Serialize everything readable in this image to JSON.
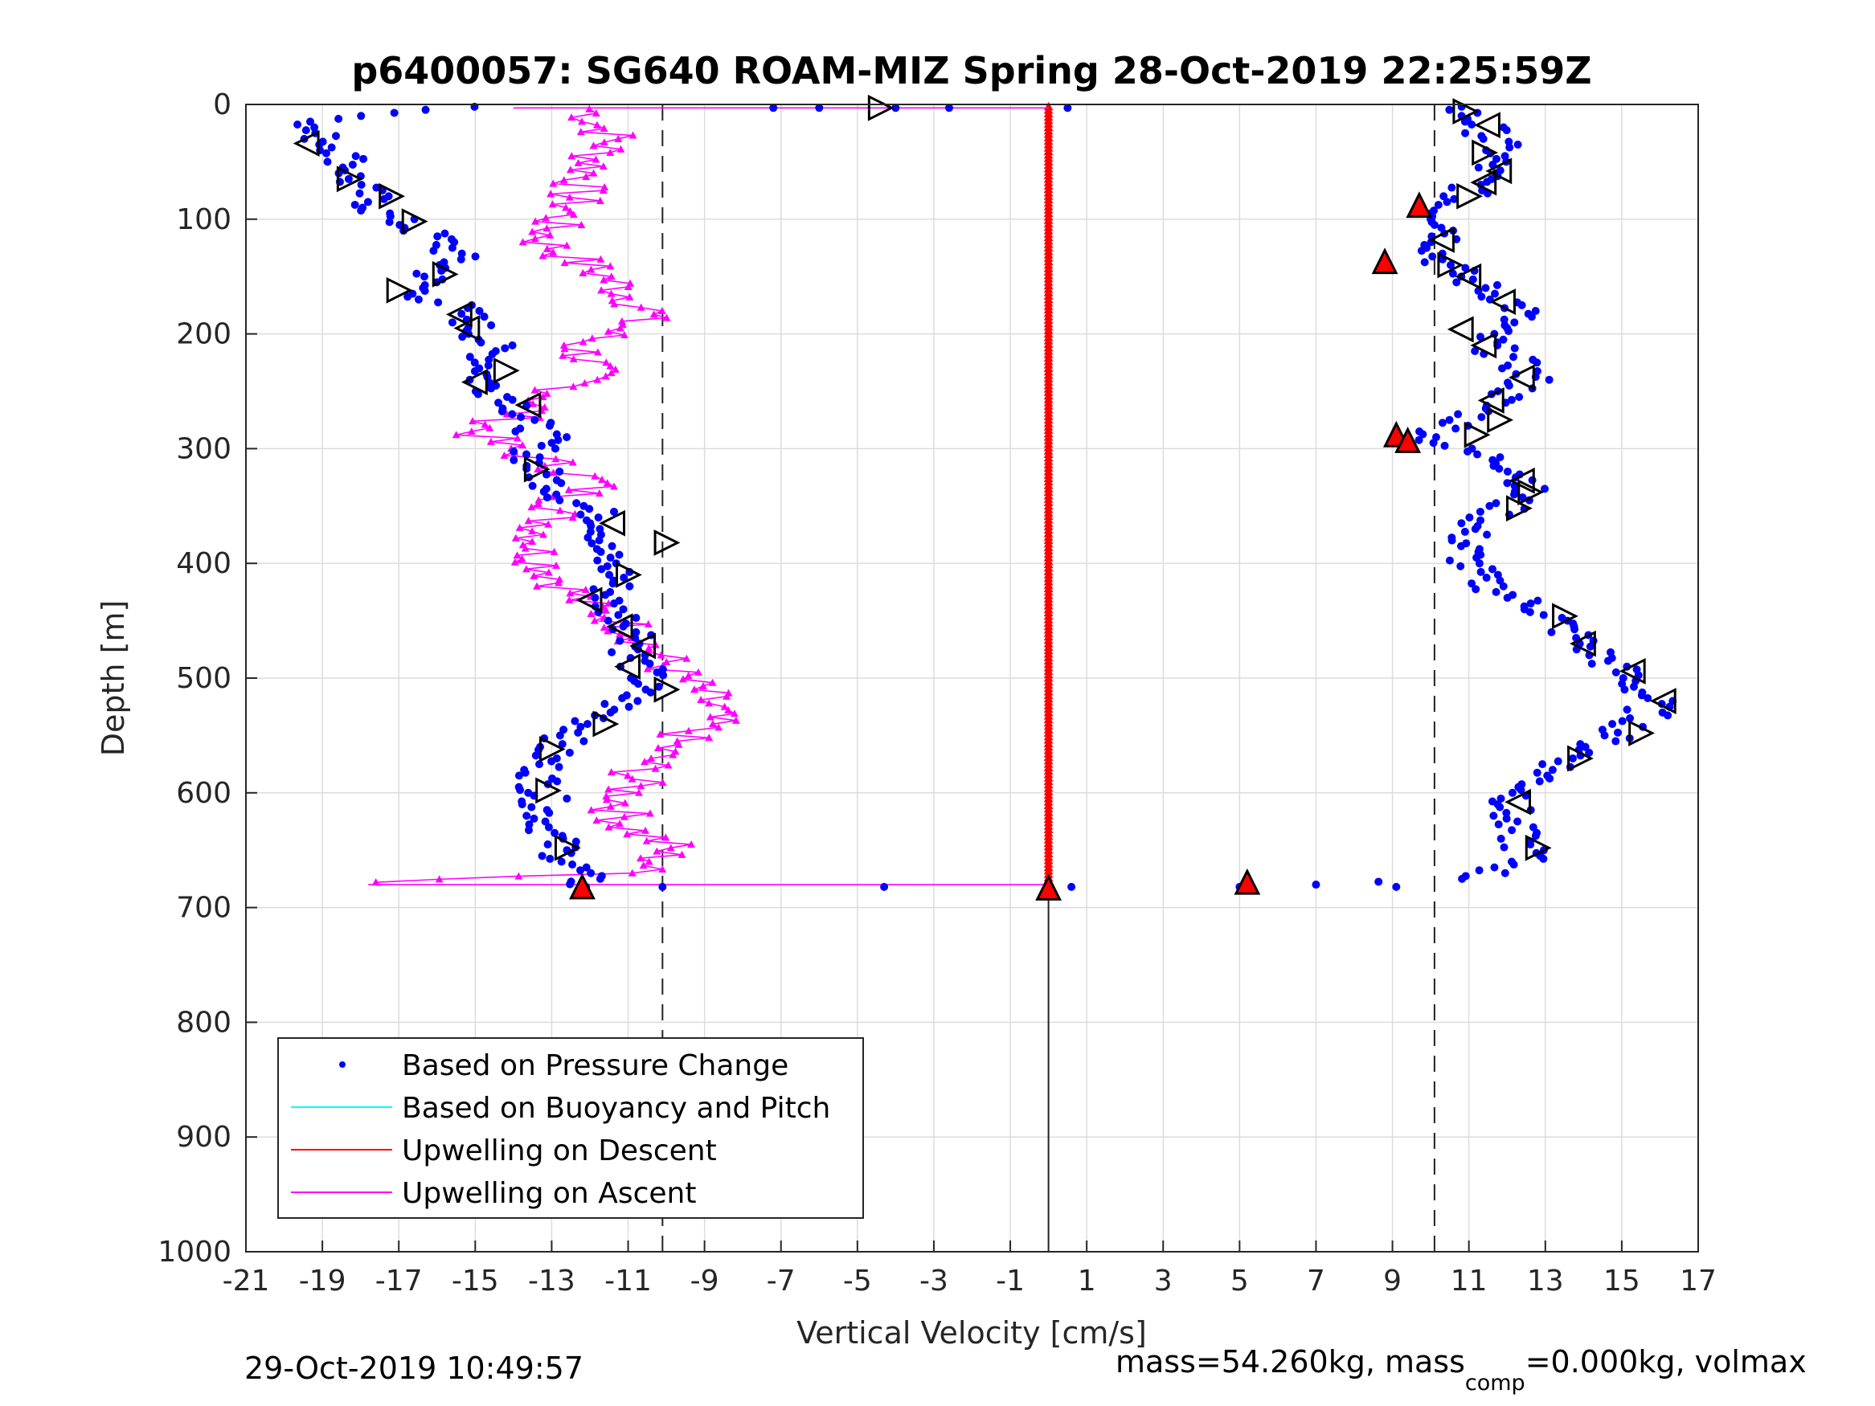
{
  "chart_data": {
    "type": "scatter",
    "title": "p6400057: SG640 ROAM-MIZ Spring 28-Oct-2019 22:25:59Z",
    "xlabel": "Vertical Velocity [cm/s]",
    "ylabel": "Depth [m]",
    "xlim": [
      -21,
      17
    ],
    "ylim": [
      0,
      1000
    ],
    "y_reversed": true,
    "grid": true,
    "x_ticks": [
      -21,
      -19,
      -17,
      -15,
      -13,
      -11,
      -9,
      -7,
      -5,
      -3,
      -1,
      1,
      3,
      5,
      7,
      9,
      11,
      13,
      15,
      17
    ],
    "y_ticks": [
      0,
      100,
      200,
      300,
      400,
      500,
      600,
      700,
      800,
      900,
      1000
    ],
    "legend": {
      "placement": "bottom-left",
      "entries": [
        {
          "label": "Based on Pressure Change",
          "color": "#0000ff",
          "marker": "dot"
        },
        {
          "label": "Based on Buoyancy and Pitch",
          "color": "#00ffff",
          "marker": "line"
        },
        {
          "label": "Upwelling on Descent",
          "color": "#ff0000",
          "marker": "line"
        },
        {
          "label": "Upwelling on Ascent",
          "color": "#ff00ff",
          "marker": "line"
        }
      ]
    },
    "reference_lines": [
      {
        "type": "vertical-dashed",
        "x": -10.1
      },
      {
        "type": "vertical-dashed",
        "x": 10.1
      },
      {
        "type": "vertical-solid",
        "x": 0,
        "y_from": 680,
        "y_to": 1000
      }
    ],
    "series": [
      {
        "name": "Based on Pressure Change",
        "color": "#0000ff",
        "profiles": [
          {
            "depth": [
              2,
              10,
              20,
              30,
              40,
              55,
              65,
              80,
              95,
              105,
              120,
              135,
              150,
              165,
              175,
              185,
              195,
              210,
              225,
              240,
              250,
              260,
              270,
              280,
              290,
              300,
              315,
              330,
              345,
              360,
              375,
              385,
              400,
              410,
              420,
              435,
              450,
              465,
              480,
              495,
              505,
              520,
              535,
              545,
              560,
              575,
              590,
              605,
              620,
              635,
              650,
              665,
              675,
              682
            ],
            "velocity": [
              -15.0,
              -18.0,
              -19.5,
              -19.0,
              -18.5,
              -18.2,
              -18.3,
              -17.8,
              -17.5,
              -16.8,
              -15.8,
              -15.5,
              -16.2,
              -16.5,
              -15.6,
              -15.2,
              -15.0,
              -14.6,
              -14.6,
              -14.8,
              -14.5,
              -13.8,
              -13.8,
              -13.5,
              -13.2,
              -13.4,
              -13.5,
              -13.0,
              -12.5,
              -11.6,
              -11.5,
              -11.8,
              -11.6,
              -11.2,
              -11.4,
              -11.6,
              -11.0,
              -10.6,
              -10.9,
              -10.6,
              -10.6,
              -11.1,
              -11.8,
              -12.2,
              -13.0,
              -13.2,
              -13.3,
              -13.2,
              -13.2,
              -13.0,
              -12.8,
              -12.4,
              -12.2,
              -12.1
            ]
          },
          {
            "depth": [
              2,
              10,
              20,
              30,
              40,
              50,
              60,
              70,
              80,
              90,
              100,
              110,
              120,
              130,
              140,
              150,
              160,
              170,
              180,
              190,
              200,
              210,
              220,
              230,
              240,
              250,
              260,
              270,
              280,
              290,
              300,
              310,
              320,
              330,
              340,
              355,
              370,
              385,
              400,
              415,
              430,
              445,
              460,
              475,
              490,
              505,
              520,
              535,
              550,
              565,
              580,
              595,
              610,
              625,
              640,
              655,
              665,
              675,
              680
            ],
            "velocity": [
              10.6,
              11.0,
              11.4,
              11.6,
              11.8,
              11.6,
              11.4,
              11.2,
              10.8,
              10.2,
              10.4,
              10.6,
              10.4,
              10.2,
              10.4,
              10.8,
              11.4,
              12.0,
              12.4,
              12.0,
              11.4,
              11.5,
              12.0,
              12.4,
              12.6,
              12.2,
              11.6,
              11.2,
              10.6,
              10.0,
              10.6,
              11.8,
              12.4,
              12.6,
              12.3,
              11.8,
              11.0,
              10.9,
              11.0,
              11.3,
              12.2,
              13.2,
              13.6,
              14.2,
              14.8,
              15.3,
              15.8,
              15.6,
              14.8,
              14.0,
              13.2,
              12.6,
              12.1,
              12.0,
              12.3,
              12.6,
              12.0,
              11.0,
              7.0
            ]
          },
          {
            "depth": [
              3,
              3,
              3,
              3,
              3,
              682,
              682,
              682,
              682,
              682
            ],
            "velocity": [
              -7.2,
              -6.0,
              -4.0,
              -2.6,
              0.5,
              -10.1,
              -4.3,
              0.6,
              5.0,
              9.1
            ]
          }
        ]
      },
      {
        "name": "Upwelling on Ascent",
        "color": "#ff00ff",
        "profiles": [
          {
            "depth": [
              4,
              15,
              30,
              45,
              60,
              75,
              90,
              105,
              120,
              135,
              150,
              165,
              180,
              195,
              210,
              225,
              240,
              255,
              270,
              285,
              300,
              315,
              330,
              345,
              360,
              375,
              390,
              405,
              420,
              435,
              450,
              465,
              480,
              495,
              510,
              525,
              540,
              555,
              570,
              585,
              600,
              615,
              630,
              645,
              660,
              670,
              678
            ],
            "velocity": [
              -12.0,
              -11.8,
              -11.4,
              -11.8,
              -12.0,
              -12.4,
              -12.5,
              -13.0,
              -13.2,
              -12.4,
              -11.6,
              -11.0,
              -10.4,
              -11.2,
              -12.3,
              -12.0,
              -12.2,
              -13.0,
              -13.8,
              -15.0,
              -14.2,
              -12.8,
              -11.8,
              -12.6,
              -13.0,
              -13.2,
              -13.4,
              -13.0,
              -12.6,
              -12.2,
              -11.2,
              -10.6,
              -10.2,
              -9.8,
              -9.2,
              -8.8,
              -9.0,
              -9.8,
              -10.4,
              -10.8,
              -11.0,
              -11.2,
              -11.0,
              -10.0,
              -10.2,
              -11.0,
              -17.6
            ]
          }
        ],
        "connector": {
          "depth": 680,
          "from": -17.8,
          "to": 0
        }
      },
      {
        "name": "Upwelling on Descent",
        "color": "#ff0000",
        "profiles": [
          {
            "depth_from": 2,
            "depth_to": 682,
            "velocity": 0
          }
        ]
      }
    ],
    "markers": {
      "open_right_triangles": [
        {
          "x": -4.4,
          "y": 3
        },
        {
          "x": -18.3,
          "y": 65
        },
        {
          "x": -17.2,
          "y": 80
        },
        {
          "x": -16.6,
          "y": 102
        },
        {
          "x": -15.8,
          "y": 148
        },
        {
          "x": -17.0,
          "y": 162
        },
        {
          "x": -14.2,
          "y": 232
        },
        {
          "x": -13.4,
          "y": 318
        },
        {
          "x": -10.0,
          "y": 382
        },
        {
          "x": -11.0,
          "y": 410
        },
        {
          "x": -10.0,
          "y": 510
        },
        {
          "x": -11.6,
          "y": 540
        },
        {
          "x": -13.0,
          "y": 562
        },
        {
          "x": -13.1,
          "y": 598
        },
        {
          "x": -12.6,
          "y": 648
        },
        {
          "x": 10.9,
          "y": 6
        },
        {
          "x": 11.4,
          "y": 42
        },
        {
          "x": 11.0,
          "y": 80
        },
        {
          "x": 10.5,
          "y": 140
        },
        {
          "x": 11.2,
          "y": 288
        },
        {
          "x": 11.8,
          "y": 275
        },
        {
          "x": 12.6,
          "y": 338
        },
        {
          "x": 12.3,
          "y": 352
        },
        {
          "x": 13.5,
          "y": 446
        },
        {
          "x": 13.9,
          "y": 570
        },
        {
          "x": 12.8,
          "y": 648
        },
        {
          "x": 15.5,
          "y": 548
        }
      ],
      "open_left_triangles": [
        {
          "x": -19.4,
          "y": 34
        },
        {
          "x": -15.4,
          "y": 183
        },
        {
          "x": -15.0,
          "y": 242
        },
        {
          "x": -13.6,
          "y": 262
        },
        {
          "x": -11.4,
          "y": 365
        },
        {
          "x": -12.0,
          "y": 432
        },
        {
          "x": -11.2,
          "y": 455
        },
        {
          "x": -10.6,
          "y": 472
        },
        {
          "x": -11.0,
          "y": 490
        },
        {
          "x": -15.2,
          "y": 195
        },
        {
          "x": 11.5,
          "y": 18
        },
        {
          "x": 11.8,
          "y": 58
        },
        {
          "x": 11.4,
          "y": 68
        },
        {
          "x": 10.3,
          "y": 118
        },
        {
          "x": 11.0,
          "y": 150
        },
        {
          "x": 11.9,
          "y": 172
        },
        {
          "x": 10.8,
          "y": 196
        },
        {
          "x": 11.4,
          "y": 210
        },
        {
          "x": 12.4,
          "y": 238
        },
        {
          "x": 11.6,
          "y": 258
        },
        {
          "x": 12.4,
          "y": 328
        },
        {
          "x": 14.0,
          "y": 470
        },
        {
          "x": 15.3,
          "y": 494
        },
        {
          "x": 16.1,
          "y": 520
        },
        {
          "x": 12.3,
          "y": 608
        }
      ],
      "red_filled_triangles": [
        {
          "x": -12.2,
          "y": 682
        },
        {
          "x": 0.0,
          "y": 683
        },
        {
          "x": 5.2,
          "y": 678
        },
        {
          "x": 9.7,
          "y": 88
        },
        {
          "x": 8.8,
          "y": 137
        },
        {
          "x": 9.1,
          "y": 288
        },
        {
          "x": 9.4,
          "y": 293
        }
      ]
    }
  },
  "footer": {
    "timestamp": "29-Oct-2019 10:49:57",
    "mass_text_prefix": "mass=54.260kg, mass",
    "mass_text_subscript": "comp",
    "mass_text_suffix": "=0.000kg, volmax"
  }
}
